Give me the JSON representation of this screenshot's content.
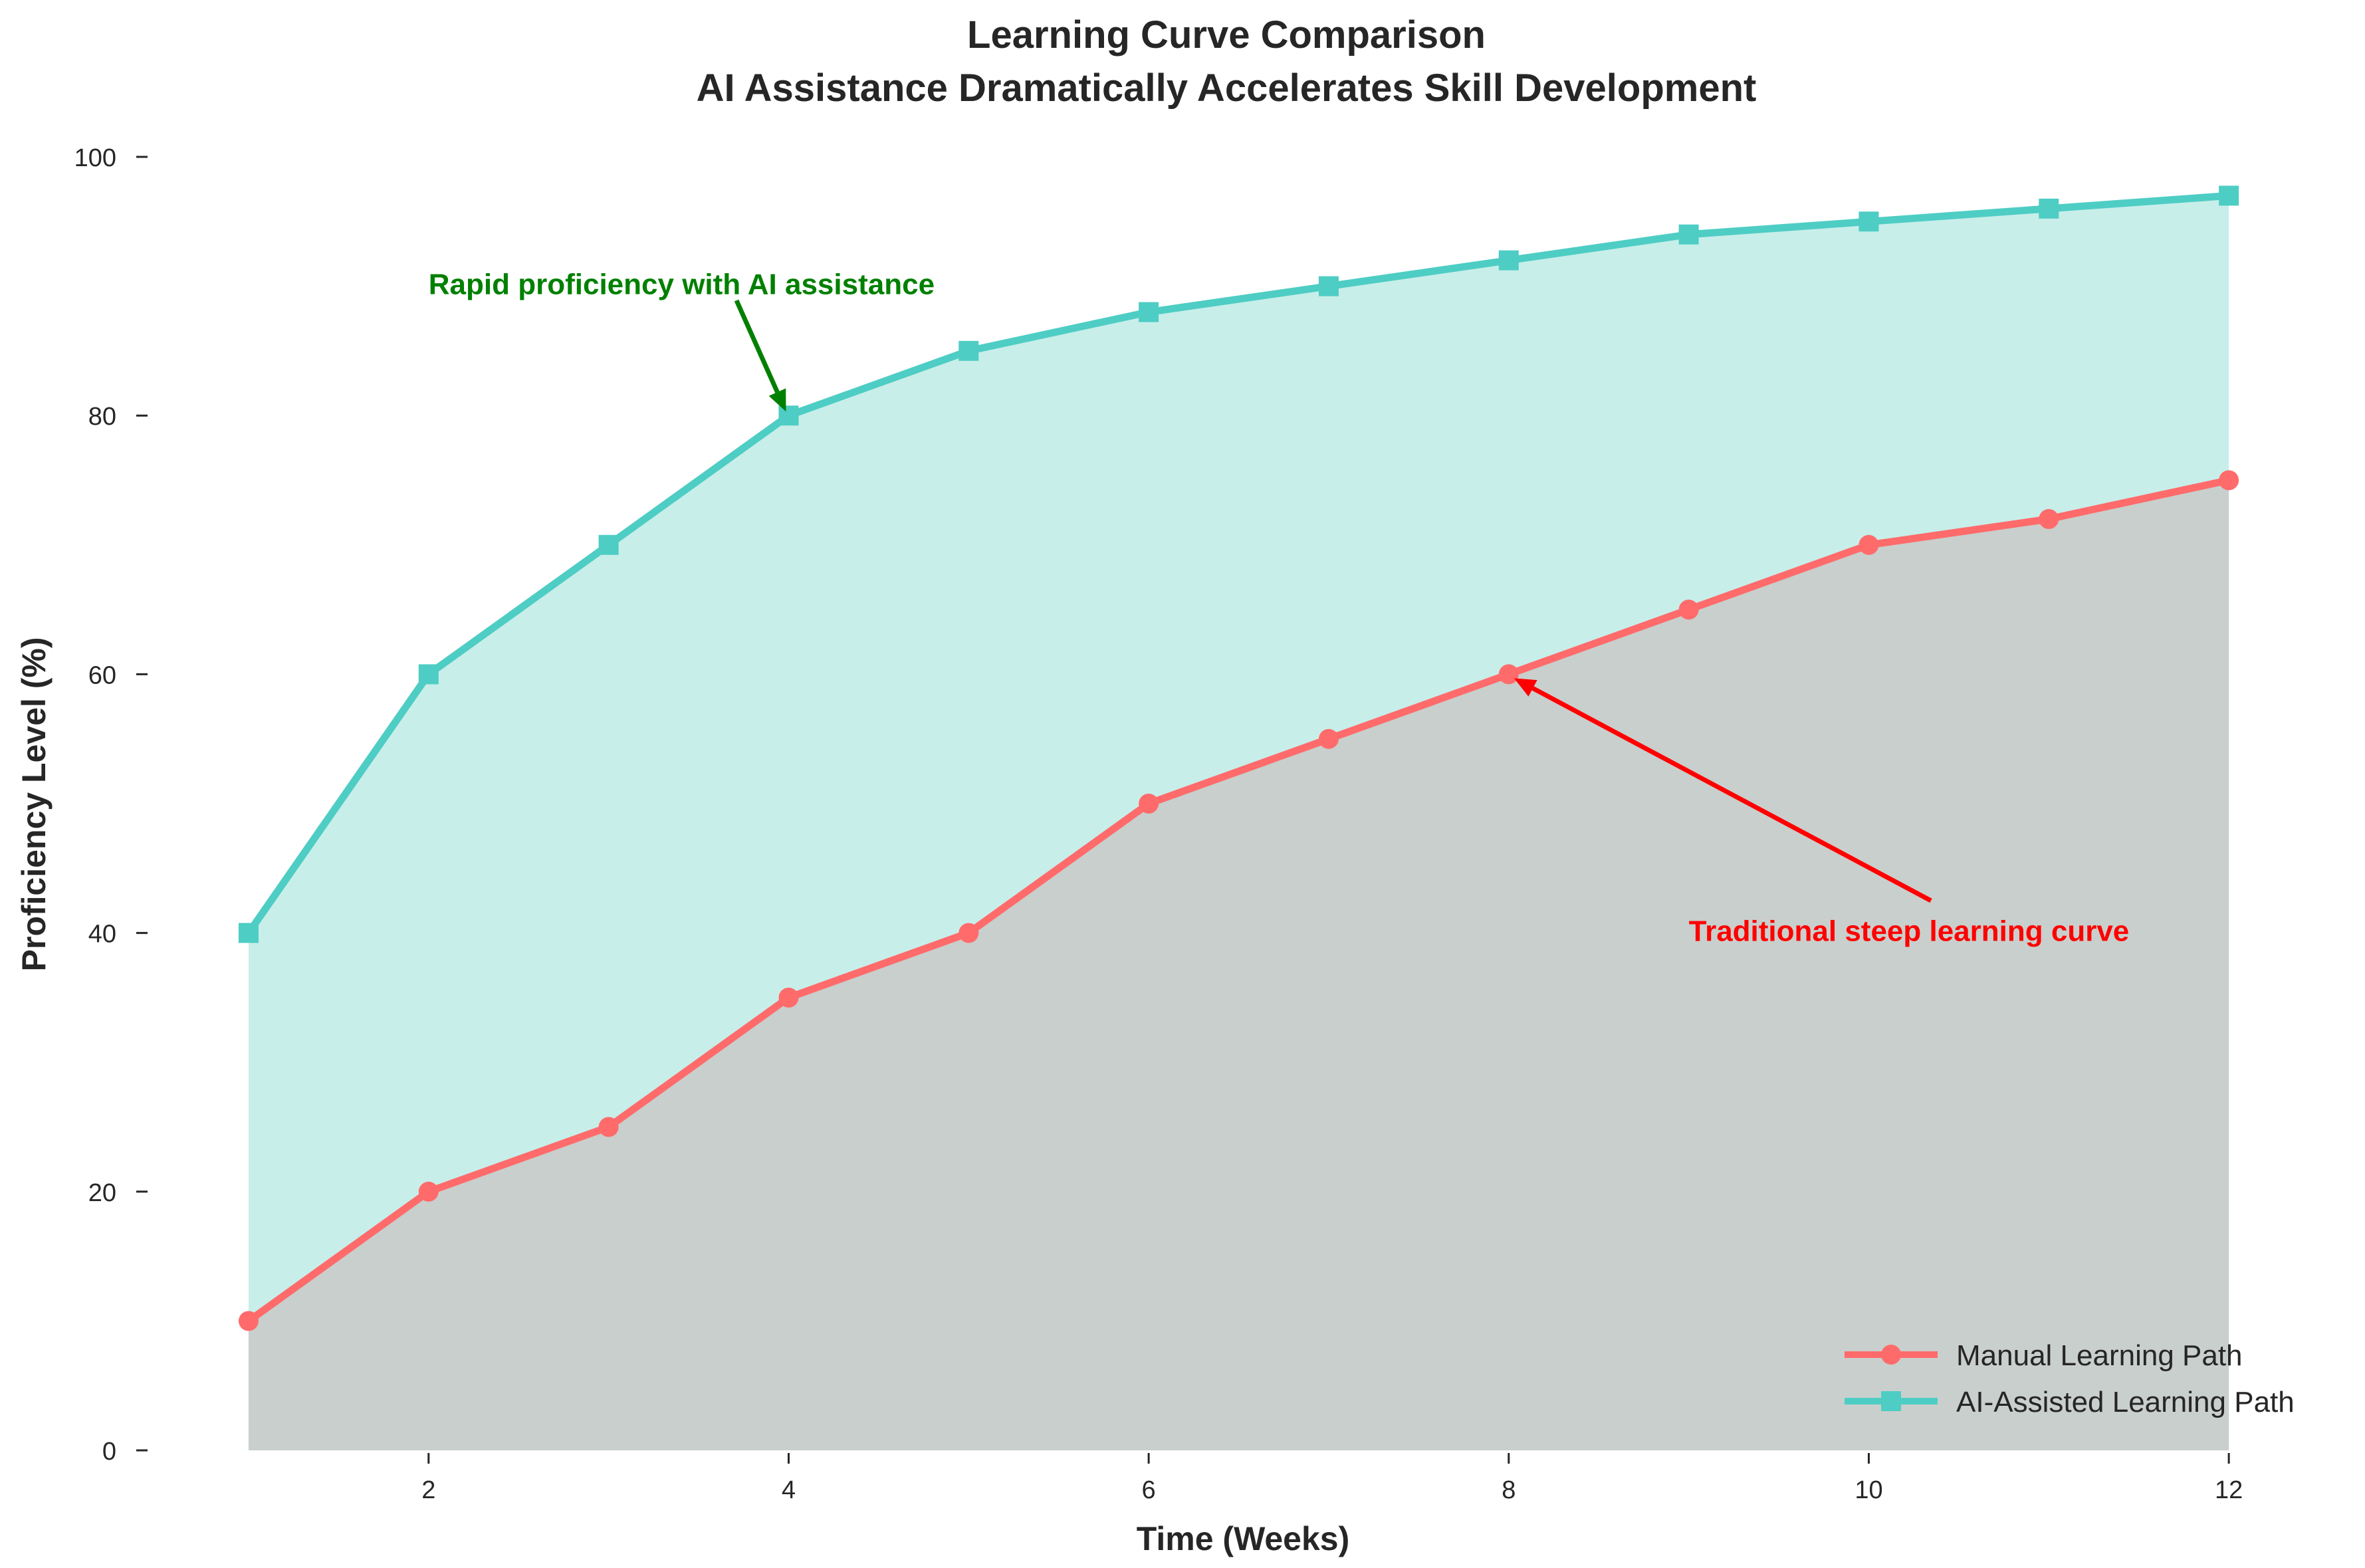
{
  "chart_data": {
    "type": "area",
    "title": "Learning Curve Comparison",
    "subtitle": "AI Assistance Dramatically Accelerates Skill Development",
    "xlabel": "Time (Weeks)",
    "ylabel": "Proficiency Level (%)",
    "x": [
      1,
      2,
      3,
      4,
      5,
      6,
      7,
      8,
      9,
      10,
      11,
      12
    ],
    "xlim": [
      0.45,
      12.45
    ],
    "ylim": [
      0,
      100
    ],
    "x_ticks": [
      2,
      4,
      6,
      8,
      10,
      12
    ],
    "y_ticks": [
      0,
      20,
      40,
      60,
      80,
      100
    ],
    "grid": false,
    "legend_position": "bottom-right",
    "series": [
      {
        "name": "Manual Learning Path",
        "values": [
          10,
          20,
          25,
          35,
          40,
          50,
          55,
          60,
          65,
          70,
          72,
          75
        ],
        "color": "#ff6b6b",
        "marker": "circle",
        "fill_color": "#c9cfcc"
      },
      {
        "name": "AI-Assisted Learning Path",
        "values": [
          40,
          60,
          70,
          80,
          85,
          88,
          90,
          92,
          94,
          95,
          96,
          97
        ],
        "color": "#4ecdc4",
        "marker": "square",
        "fill_color": "#c8eeea"
      }
    ],
    "annotations": [
      {
        "text": "Rapid proficiency with AI assistance",
        "color": "#008000",
        "target": [
          4,
          80
        ],
        "text_anchor_point": [
          2,
          90
        ]
      },
      {
        "text": "Traditional steep learning curve",
        "color": "#ff0000",
        "target": [
          8,
          60
        ],
        "text_anchor_point": [
          9,
          40
        ]
      }
    ]
  }
}
